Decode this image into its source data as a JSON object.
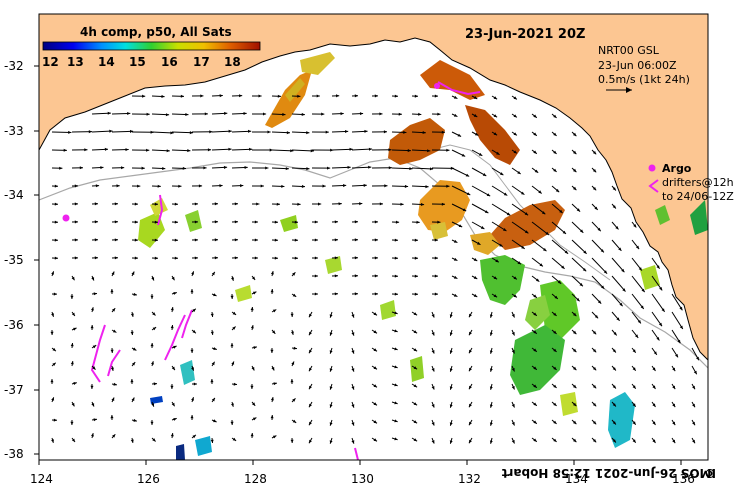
{
  "title": {
    "composite_label": "4h comp, p50, All Sats",
    "date_label": "23-Jun-2021 20Z"
  },
  "colorbar": {
    "tick_labels": [
      "12",
      "13",
      "14",
      "15",
      "16",
      "17",
      "18"
    ],
    "range": [
      12,
      18.5
    ]
  },
  "current_legend": {
    "source": "NRT00 GSL",
    "time": "23-Jun 06:00Z",
    "scale_label": "0.5m/s (1kt 24h)"
  },
  "argo_legend": {
    "argo_label": "Argo",
    "drifter_line1": "drifters@12h",
    "drifter_line2": "to 24/06-12Z"
  },
  "credit": "IMOS 26-Jun-2021 12:58 Hobart",
  "credit_symbol": "©",
  "axes": {
    "x_range": [
      124,
      136.5
    ],
    "y_range": [
      -38.1,
      -31.2
    ],
    "x_ticks": [
      "124",
      "126",
      "128",
      "130",
      "132",
      "134",
      "136"
    ],
    "y_ticks": [
      "-32",
      "-33",
      "-34",
      "-35",
      "-36",
      "-37",
      "-38"
    ]
  },
  "colors": {
    "land": "#fcc692",
    "coast": "#000000",
    "bathymetry": "#a8a8a8",
    "argo": "#ee22ee",
    "arrows": "#000000"
  }
}
